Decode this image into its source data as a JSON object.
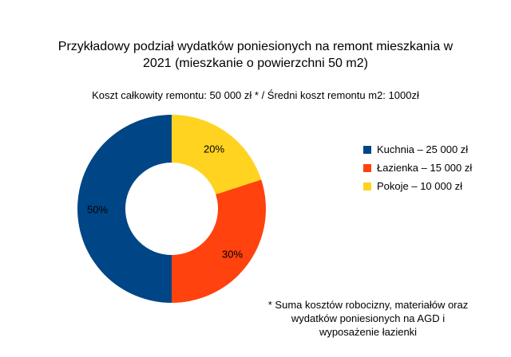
{
  "title": "Przykładowy podział wydatków poniesionych na remont mieszkania w 2021 (mieszkanie o powierzchni 50 m2)",
  "subtitle": "Koszt całkowity remontu: 50 000 zł * / Średni koszt remontu m2: 1000zł",
  "footnote": "* Suma kosztów robocizny, materiałów oraz wydatków poniesionych na AGD i wyposażenie łazienki",
  "chart_data": {
    "type": "pie",
    "title": "Przykładowy podział wydatków poniesionych na remont mieszkania w 2021 (mieszkanie o powierzchni 50 m2)",
    "subtitle": "Koszt całkowity remontu: 50 000 zł * / Średni koszt remontu m2: 1000zł",
    "donut": true,
    "start_angle_deg": 0,
    "direction": "clockwise",
    "legend_position": "right",
    "slices": [
      {
        "name": "Kuchnia",
        "label": "Kuchnia – 25 000 zł",
        "value": 50,
        "percent_label": "50%",
        "color": "#004586"
      },
      {
        "name": "Łazienka",
        "label": "Łazienka – 15 000 zł",
        "value": 30,
        "percent_label": "30%",
        "color": "#ff420e"
      },
      {
        "name": "Pokoje",
        "label": "Pokoje – 10 000 zł",
        "value": 20,
        "percent_label": "20%",
        "color": "#ffd320"
      }
    ],
    "total_label": "Koszt całkowity remontu: 50 000 zł",
    "per_m2_label": "Średni koszt remontu m2: 1000zł"
  }
}
